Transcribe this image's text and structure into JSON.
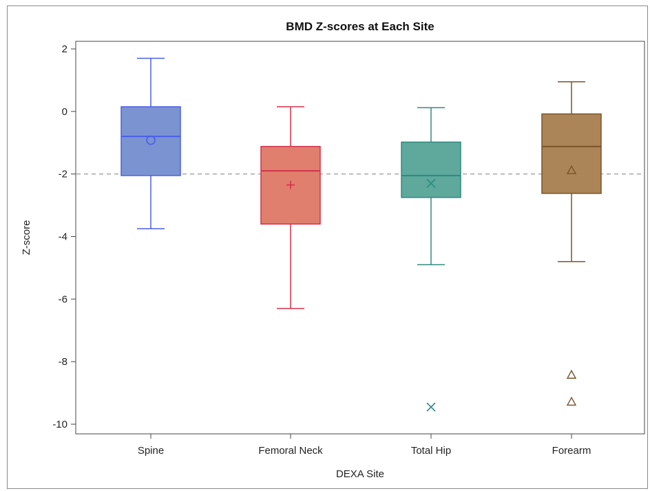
{
  "chart_data": {
    "type": "box",
    "title": "BMD Z-scores at Each Site",
    "xlabel": "DEXA Site",
    "ylabel": "Z-score",
    "ylim": [
      -10.3,
      2.2
    ],
    "yticks": [
      2,
      0,
      -2,
      -4,
      -6,
      -8,
      -10
    ],
    "reference_line": {
      "y": -2,
      "style": "dashed"
    },
    "grid": false,
    "categories": [
      "Spine",
      "Femoral Neck",
      "Total Hip",
      "Forearm"
    ],
    "series": [
      {
        "category": "Spine",
        "whisker_low": -3.75,
        "q1": -2.05,
        "median": -0.8,
        "q3": 0.15,
        "whisker_high": 1.7,
        "mean": -0.92,
        "mean_marker": "circle",
        "outliers": [],
        "fill": "#7b93d1",
        "stroke": "#4a5ee8"
      },
      {
        "category": "Femoral Neck",
        "whisker_low": -6.3,
        "q1": -3.6,
        "median": -1.9,
        "q3": -1.12,
        "whisker_high": 0.15,
        "mean": -2.35,
        "mean_marker": "plus",
        "outliers": [],
        "fill": "#e17f6f",
        "stroke": "#d2304a"
      },
      {
        "category": "Total Hip",
        "whisker_low": -4.9,
        "q1": -2.75,
        "median": -2.05,
        "q3": -0.98,
        "whisker_high": 0.12,
        "mean": -2.3,
        "mean_marker": "x",
        "outliers": [
          -9.45
        ],
        "fill": "#5ea89c",
        "stroke": "#2e8a7c"
      },
      {
        "category": "Forearm",
        "whisker_low": -4.8,
        "q1": -2.62,
        "median": -1.12,
        "q3": -0.08,
        "whisker_high": 0.95,
        "mean": -1.88,
        "mean_marker": "triangle",
        "outliers": [
          -8.42,
          -9.28
        ],
        "fill": "#ab8557",
        "stroke": "#7a5228"
      }
    ]
  }
}
